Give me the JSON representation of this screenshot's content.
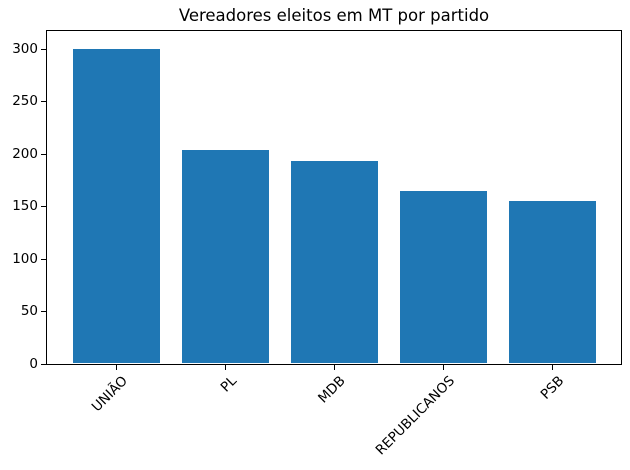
{
  "figure": {
    "background": "#ffffff",
    "text_color": "#000000"
  },
  "chart_data": {
    "type": "bar",
    "title": "Vereadores eleitos em MT por partido",
    "categories": [
      "UNIÃO",
      "PL",
      "MDB",
      "REPUBLICANOS",
      "PSB"
    ],
    "values": [
      300,
      204,
      194,
      165,
      156
    ],
    "bar_color": "#1f77b4",
    "xlabel": "",
    "ylabel": "",
    "yticks": [
      0,
      50,
      100,
      150,
      200,
      250,
      300
    ],
    "ylim": [
      0,
      318
    ],
    "x_tick_rotation": 45,
    "grid": false,
    "legend_position": "none"
  }
}
